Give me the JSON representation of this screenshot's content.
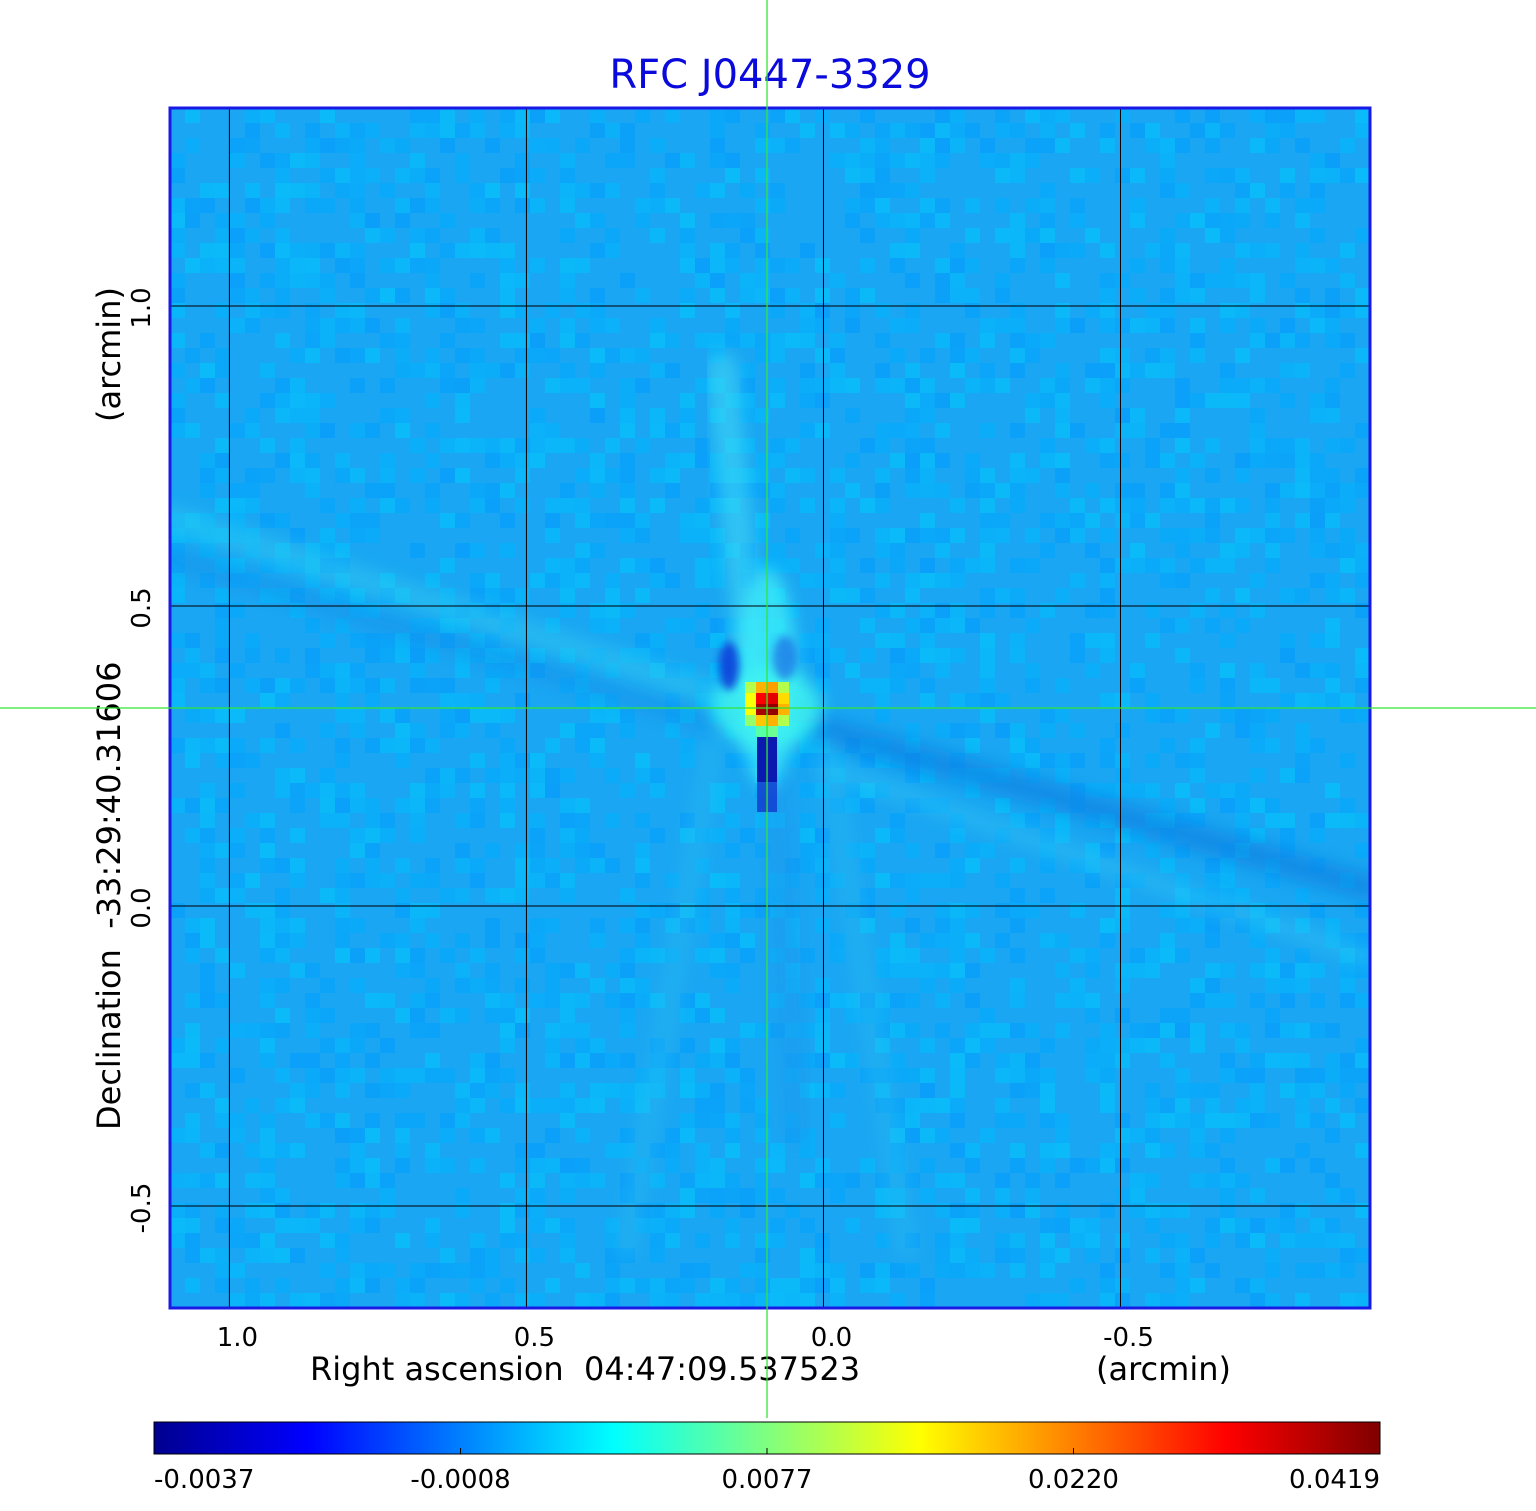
{
  "chart_data": {
    "type": "heatmap",
    "title": "RFC J0447-3329",
    "xlabel": "Right ascension  04:47:09.537523",
    "xunit": "(arcmin)",
    "ylabel": "Declination  -33:29:40.31606",
    "yunit": "(arcmin)",
    "x_ticks": [
      {
        "value": 1.0,
        "label": "1.0"
      },
      {
        "value": 0.5,
        "label": "0.5"
      },
      {
        "value": 0.0,
        "label": "0.0"
      },
      {
        "value": -0.5,
        "label": "-0.5"
      }
    ],
    "y_ticks": [
      {
        "value": 1.0,
        "label": "1.0"
      },
      {
        "value": 0.5,
        "label": "0.5"
      },
      {
        "value": 0.0,
        "label": "0.0"
      },
      {
        "value": -0.5,
        "label": "-0.5"
      }
    ],
    "xlim": [
      1.1,
      -0.92
    ],
    "ylim": [
      -0.67,
      1.33
    ],
    "grid": true,
    "crosshair": {
      "x": 0.095,
      "y": 0.33
    },
    "peak": {
      "x": 0.095,
      "y": 0.33,
      "value": 0.0419
    },
    "colorbar": {
      "colormap": "jet",
      "ticks": [
        {
          "value": -0.0037,
          "label": "-0.0037"
        },
        {
          "value": -0.0008,
          "label": "-0.0008"
        },
        {
          "value": 0.0077,
          "label": "0.0077"
        },
        {
          "value": 0.022,
          "label": "0.0220"
        },
        {
          "value": 0.0419,
          "label": "0.0419"
        }
      ]
    },
    "colors": {
      "title": "#0a0adc",
      "frame": "#1a1ae6",
      "grid": "#000000",
      "crosshair": "#33e633",
      "background_map": "#1aa6f2"
    }
  }
}
